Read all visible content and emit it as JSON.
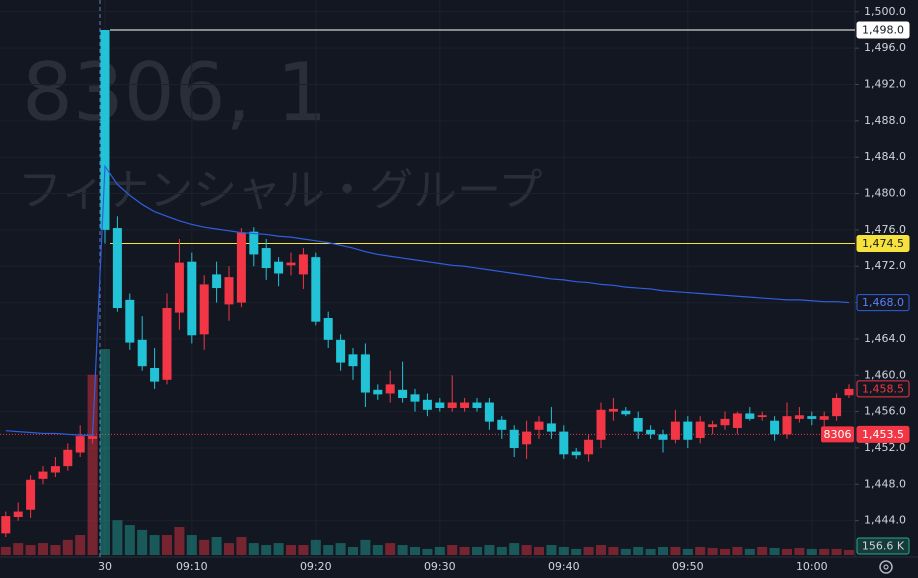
{
  "chart_data": {
    "type": "candlestick",
    "watermark": [
      "8306, 1",
      "フィナンシャル・グループ"
    ],
    "categories": [
      null,
      null,
      null,
      null,
      null,
      null,
      null,
      null,
      "30",
      null,
      null,
      null,
      null,
      null,
      null,
      "09:10",
      null,
      null,
      null,
      null,
      null,
      null,
      null,
      null,
      null,
      "09:20",
      null,
      null,
      null,
      null,
      null,
      null,
      null,
      null,
      null,
      "09:30",
      null,
      null,
      null,
      null,
      null,
      null,
      null,
      null,
      null,
      "09:40",
      null,
      null,
      null,
      null,
      null,
      null,
      null,
      null,
      null,
      "09:50",
      null,
      null,
      null,
      null,
      null,
      null,
      null,
      null,
      null,
      "10:00",
      null,
      null,
      null
    ],
    "candles": {
      "up_color": "#f23645",
      "down_color": "#22c3d6",
      "open": [
        1442.6,
        1444.4,
        1445.2,
        1448.6,
        1449.3,
        1450.0,
        1451.5,
        1453.0,
        1498.0,
        1476.2,
        1468.3,
        1463.9,
        1460.8,
        1459.5,
        1466.9,
        1472.5,
        1464.5,
        1471.1,
        1467.8,
        1468.0,
        1475.8,
        1474.0,
        1472.5,
        1472.1,
        1471.1,
        1473.0,
        1466.3,
        1463.9,
        1462.3,
        1462.3,
        1458.4,
        1458.0,
        1458.4,
        1457.9,
        1457.3,
        1457.0,
        1456.4,
        1456.4,
        1457.0,
        1457.0,
        1455.1,
        1454.0,
        1452.4,
        1454.0,
        1454.7,
        1453.8,
        1451.6,
        1451.3,
        1452.9,
        1456.0,
        1456.1,
        1455.3,
        1454.0,
        1453.5,
        1452.9,
        1454.9,
        1453.1,
        1454.3,
        1454.5,
        1454.2,
        1455.8,
        1455.4,
        1455.0,
        1453.5,
        1455.2,
        1455.5,
        1455.1,
        1455.5,
        1457.8
      ],
      "high": [
        1445.0,
        1446.0,
        1449.0,
        1450.0,
        1451.0,
        1452.5,
        1454.5,
        1454.0,
        1498.0,
        1477.5,
        1469.0,
        1466.5,
        1463.0,
        1469.0,
        1475.0,
        1473.5,
        1471.0,
        1472.5,
        1472.0,
        1476.2,
        1476.3,
        1475.0,
        1473.0,
        1473.5,
        1474.0,
        1473.5,
        1467.0,
        1464.5,
        1463.0,
        1463.5,
        1459.0,
        1460.5,
        1461.5,
        1458.5,
        1458.0,
        1457.5,
        1460.0,
        1457.5,
        1457.5,
        1457.5,
        1455.5,
        1454.5,
        1455.0,
        1455.5,
        1456.5,
        1454.5,
        1452.0,
        1453.5,
        1457.0,
        1457.5,
        1456.5,
        1456.0,
        1454.5,
        1454.0,
        1456.2,
        1455.5,
        1455.5,
        1455.0,
        1456.0,
        1456.0,
        1456.5,
        1456.0,
        1455.5,
        1457.0,
        1456.5,
        1456.0,
        1456.0,
        1458.0,
        1459.0
      ],
      "low": [
        1442.2,
        1444.0,
        1444.3,
        1448.0,
        1448.8,
        1449.5,
        1451.0,
        1452.5,
        1474.5,
        1467.0,
        1462.8,
        1460.5,
        1458.5,
        1459.0,
        1465.0,
        1463.5,
        1462.8,
        1468.0,
        1466.0,
        1467.5,
        1472.0,
        1470.5,
        1469.8,
        1471.0,
        1469.5,
        1465.5,
        1463.0,
        1460.5,
        1459.5,
        1456.5,
        1457.3,
        1457.0,
        1457.0,
        1456.0,
        1455.5,
        1456.0,
        1456.0,
        1456.0,
        1456.0,
        1454.0,
        1453.0,
        1451.0,
        1450.8,
        1453.0,
        1453.0,
        1450.8,
        1450.8,
        1450.5,
        1452.0,
        1455.0,
        1455.5,
        1453.0,
        1453.0,
        1451.5,
        1452.5,
        1452.0,
        1452.5,
        1453.5,
        1454.0,
        1453.5,
        1455.0,
        1455.0,
        1452.8,
        1453.0,
        1454.8,
        1454.5,
        1454.0,
        1455.0,
        1457.5
      ],
      "close": [
        1444.5,
        1445.0,
        1448.5,
        1449.4,
        1450.0,
        1451.8,
        1453.3,
        1453.3,
        1476.0,
        1467.4,
        1463.6,
        1461.0,
        1459.3,
        1467.4,
        1472.4,
        1464.4,
        1470.0,
        1469.6,
        1470.8,
        1475.7,
        1473.3,
        1471.8,
        1471.2,
        1472.4,
        1473.3,
        1465.9,
        1463.9,
        1461.4,
        1461.0,
        1458.1,
        1457.9,
        1459.0,
        1457.5,
        1457.1,
        1456.2,
        1456.4,
        1457.0,
        1457.0,
        1456.4,
        1454.9,
        1454.0,
        1452.0,
        1453.8,
        1454.9,
        1453.8,
        1451.3,
        1451.2,
        1452.9,
        1456.2,
        1456.3,
        1455.7,
        1453.8,
        1453.5,
        1452.9,
        1454.9,
        1452.9,
        1454.9,
        1454.6,
        1455.2,
        1455.8,
        1455.2,
        1455.6,
        1453.5,
        1455.5,
        1455.6,
        1455.2,
        1455.5,
        1457.5,
        1458.5
      ],
      "last_label": "1,458.5"
    },
    "volume": {
      "values": [
        250,
        370,
        310,
        370,
        310,
        470,
        620,
        5600,
        6400,
        1080,
        930,
        780,
        620,
        620,
        870,
        620,
        470,
        560,
        370,
        560,
        370,
        310,
        370,
        310,
        310,
        470,
        310,
        370,
        250,
        470,
        310,
        370,
        310,
        250,
        190,
        250,
        310,
        250,
        250,
        310,
        250,
        370,
        310,
        250,
        310,
        250,
        190,
        250,
        310,
        250,
        190,
        250,
        190,
        250,
        250,
        190,
        250,
        220,
        190,
        250,
        190,
        250,
        220,
        190,
        220,
        190,
        190,
        190,
        156.6
      ],
      "up_color": "rgba(242,54,69,0.45)",
      "down_color": "rgba(34,171,160,0.45)",
      "last_label": "156.6 K"
    },
    "lines": [
      {
        "color": "#2f5fe0",
        "values": [
          1453.9,
          1453.8,
          1453.7,
          1453.6,
          1453.6,
          1453.5,
          1453.4,
          1453.4,
          1483,
          1481,
          1479.8,
          1478.8,
          1478,
          1477.5,
          1477,
          1476.6,
          1476.3,
          1476.1,
          1475.9,
          1475.7,
          1475.6,
          1475.5,
          1475.3,
          1475.2,
          1475,
          1474.8,
          1474.6,
          1474.3,
          1474,
          1473.6,
          1473.3,
          1473.1,
          1472.9,
          1472.7,
          1472.5,
          1472.3,
          1472.1,
          1472,
          1471.8,
          1471.6,
          1471.4,
          1471.2,
          1471,
          1470.8,
          1470.6,
          1470.5,
          1470.3,
          1470.2,
          1470,
          1469.9,
          1469.7,
          1469.6,
          1469.5,
          1469.3,
          1469.2,
          1469.1,
          1469,
          1468.9,
          1468.8,
          1468.7,
          1468.6,
          1468.5,
          1468.4,
          1468.3,
          1468.3,
          1468.2,
          1468.1,
          1468.1,
          1468.0
        ],
        "last_label": "1,468.0"
      }
    ],
    "price_lines": [
      {
        "value": 1498,
        "label": "1,498.0",
        "color": "#ffffff",
        "style": "solid"
      },
      {
        "value": 1474.5,
        "label": "1,474.5",
        "color": "#f5e23c",
        "style": "solid"
      },
      {
        "value": 1453.5,
        "label": "1,453.5",
        "color": "#f23645",
        "style": "dotted",
        "tag": "8306"
      }
    ],
    "ylim": [
      1440,
      1501.3
    ],
    "yticks": [
      {
        "value": 1500,
        "label": "1,500.0"
      },
      {
        "value": 1496,
        "label": "1,496.0"
      },
      {
        "value": 1492,
        "label": "1,492.0"
      },
      {
        "value": 1488,
        "label": "1,488.0"
      },
      {
        "value": 1484,
        "label": "1,484.0"
      },
      {
        "value": 1480,
        "label": "1,480.0"
      },
      {
        "value": 1476,
        "label": "1,476.0"
      },
      {
        "value": 1472,
        "label": "1,472.0"
      },
      {
        "value": 1468,
        "label": "1,468.0"
      },
      {
        "value": 1464,
        "label": "1,464.0"
      },
      {
        "value": 1460,
        "label": "1,460.0"
      },
      {
        "value": 1456,
        "label": "1,456.0"
      },
      {
        "value": 1452,
        "label": "1,452.0"
      },
      {
        "value": 1448,
        "label": "1,448.0"
      },
      {
        "value": 1444,
        "label": "1,444.0"
      }
    ],
    "grid": true
  }
}
